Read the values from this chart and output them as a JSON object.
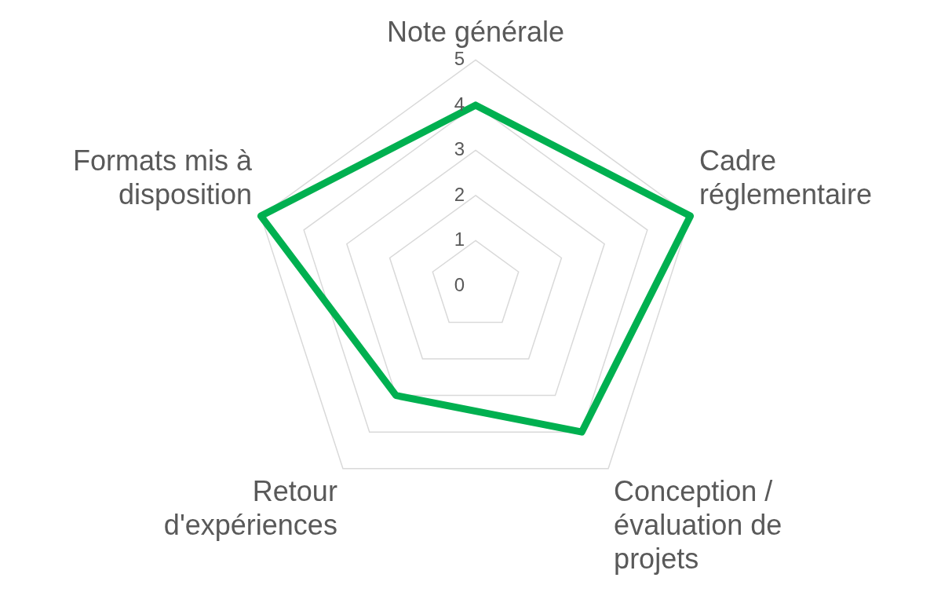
{
  "chart_data": {
    "type": "radar",
    "categories": [
      "Note générale",
      "Cadre réglementaire",
      "Conception / évaluation de projets",
      "Retour d'expériences",
      "Formats mis à disposition"
    ],
    "series": [
      {
        "color": "#00b050",
        "values": [
          4,
          5,
          4,
          3,
          5
        ]
      }
    ],
    "ylim": [
      0,
      5
    ],
    "yticks": [
      0,
      1,
      2,
      3,
      4,
      5
    ],
    "grid": true,
    "legend": false,
    "marker": "none"
  }
}
